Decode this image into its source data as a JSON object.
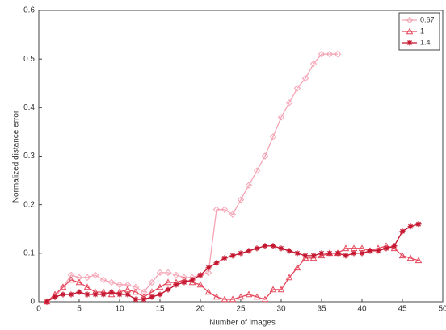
{
  "chart_data": {
    "type": "line",
    "xlabel": "Number of images",
    "ylabel": "Normalized distance error",
    "xlim": [
      0,
      50
    ],
    "xticks": [
      0,
      5,
      10,
      15,
      20,
      25,
      30,
      35,
      40,
      45,
      50
    ],
    "ylim": [
      0,
      0.6
    ],
    "yticks": [
      0,
      0.1,
      0.2,
      0.3,
      0.4,
      0.5,
      0.6
    ],
    "legend": "upper right",
    "series": [
      {
        "name": "0.67",
        "color": "#f4a3b4",
        "marker": "diamond",
        "x": [
          1,
          2,
          3,
          4,
          5,
          6,
          7,
          8,
          9,
          10,
          11,
          12,
          13,
          14,
          15,
          16,
          17,
          18,
          19,
          20,
          21,
          22,
          23,
          24,
          25,
          26,
          27,
          28,
          29,
          30,
          31,
          32,
          33,
          34,
          35,
          36,
          37
        ],
        "values": [
          0,
          0.01,
          0.03,
          0.055,
          0.05,
          0.05,
          0.055,
          0.045,
          0.04,
          0.035,
          0.035,
          0.03,
          0.02,
          0.04,
          0.06,
          0.06,
          0.055,
          0.05,
          0.05,
          0.055,
          0.06,
          0.19,
          0.19,
          0.18,
          0.21,
          0.24,
          0.27,
          0.3,
          0.34,
          0.38,
          0.41,
          0.44,
          0.46,
          0.49,
          0.51,
          0.51,
          0.51
        ]
      },
      {
        "name": "1",
        "color": "#e5485c",
        "marker": "triangle",
        "x": [
          1,
          2,
          3,
          4,
          5,
          6,
          7,
          8,
          9,
          10,
          11,
          12,
          13,
          14,
          15,
          16,
          17,
          18,
          19,
          20,
          21,
          22,
          23,
          24,
          25,
          26,
          27,
          28,
          29,
          30,
          31,
          32,
          33,
          34,
          35,
          36,
          37,
          38,
          39,
          40,
          41,
          42,
          43,
          44,
          45,
          46,
          47
        ],
        "values": [
          0,
          0.015,
          0.03,
          0.045,
          0.04,
          0.03,
          0.02,
          0.02,
          0.015,
          0.02,
          0.025,
          0.02,
          0.01,
          0.02,
          0.03,
          0.04,
          0.04,
          0.045,
          0.04,
          0.035,
          0.02,
          0.01,
          0.005,
          0.005,
          0.01,
          0.015,
          0.01,
          0.005,
          0.025,
          0.025,
          0.05,
          0.07,
          0.09,
          0.09,
          0.095,
          0.1,
          0.1,
          0.11,
          0.11,
          0.11,
          0.105,
          0.11,
          0.115,
          0.11,
          0.095,
          0.09,
          0.085
        ]
      },
      {
        "name": "1.4",
        "color": "#c4142e",
        "marker": "star",
        "x": [
          1,
          2,
          3,
          4,
          5,
          6,
          7,
          8,
          9,
          10,
          11,
          12,
          13,
          14,
          15,
          16,
          17,
          18,
          19,
          20,
          21,
          22,
          23,
          24,
          25,
          26,
          27,
          28,
          29,
          30,
          31,
          32,
          33,
          34,
          35,
          36,
          37,
          38,
          39,
          40,
          41,
          42,
          43,
          44,
          45,
          46,
          47
        ],
        "values": [
          0,
          0.01,
          0.015,
          0.015,
          0.02,
          0.015,
          0.015,
          0.015,
          0.02,
          0.015,
          0.015,
          0.005,
          0.005,
          0.01,
          0.015,
          0.025,
          0.035,
          0.04,
          0.045,
          0.055,
          0.07,
          0.08,
          0.09,
          0.095,
          0.1,
          0.105,
          0.11,
          0.115,
          0.115,
          0.11,
          0.105,
          0.1,
          0.095,
          0.095,
          0.1,
          0.1,
          0.1,
          0.095,
          0.1,
          0.1,
          0.105,
          0.105,
          0.11,
          0.115,
          0.145,
          0.155,
          0.16
        ]
      }
    ]
  }
}
